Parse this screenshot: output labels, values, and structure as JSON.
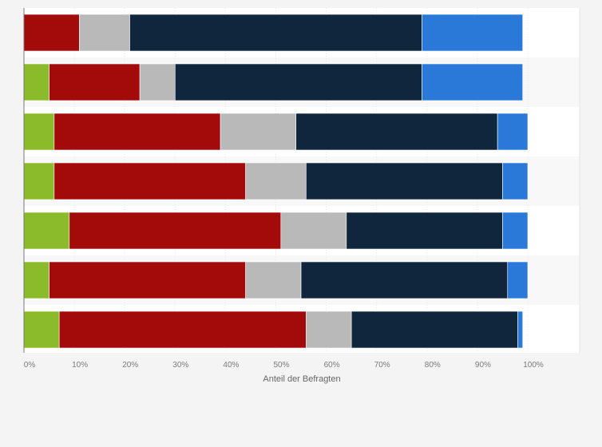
{
  "chart_data": {
    "type": "bar",
    "orientation": "horizontal",
    "stacked": true,
    "categories": [
      "",
      "",
      "",
      "",
      "",
      "",
      ""
    ],
    "series": [
      {
        "color": "#8bba2b",
        "values": [
          0,
          5,
          6,
          6,
          9,
          5,
          7
        ]
      },
      {
        "color": "#a30a0a",
        "values": [
          11,
          18,
          33,
          38,
          42,
          39,
          49
        ]
      },
      {
        "color": "#b9b9b9",
        "values": [
          10,
          7,
          15,
          12,
          13,
          11,
          9
        ]
      },
      {
        "color": "#10263d",
        "values": [
          58,
          49,
          40,
          39,
          31,
          41,
          33
        ]
      },
      {
        "color": "#2a78d8",
        "values": [
          20,
          20,
          6,
          5,
          5,
          4,
          1
        ]
      }
    ],
    "x_ticks": [
      "0%",
      "10%",
      "20%",
      "30%",
      "40%",
      "50%",
      "60%",
      "70%",
      "80%",
      "90%",
      "100%"
    ],
    "xlabel": "Anteil der Befragten",
    "ylabel": "",
    "xlim": [
      0,
      100
    ],
    "grid": true,
    "legend": "none"
  }
}
